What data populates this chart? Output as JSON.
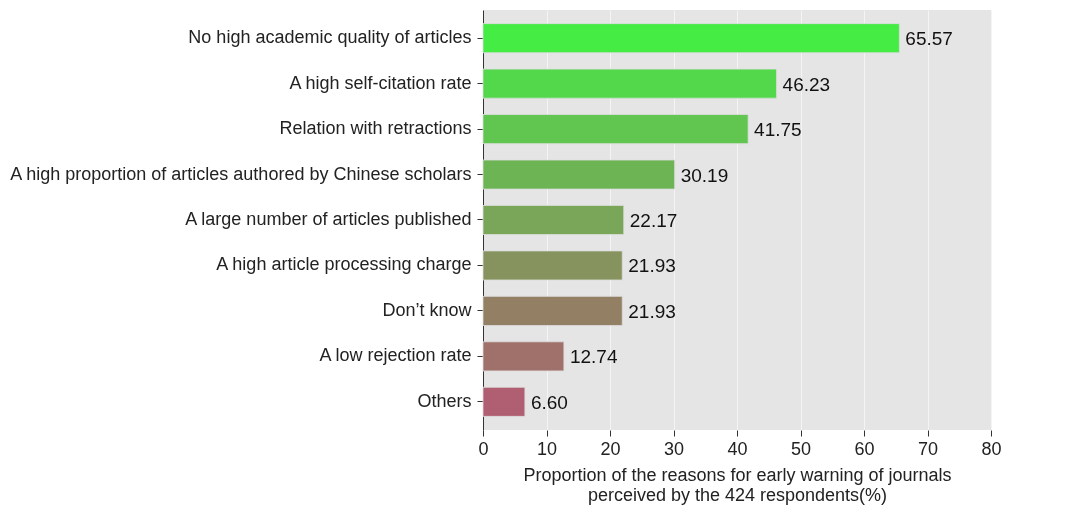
{
  "chart_data": {
    "type": "bar",
    "orientation": "horizontal",
    "categories": [
      "No high academic quality of articles",
      "A high self-citation rate",
      "Relation with retractions",
      "A high proportion of articles authored by Chinese scholars",
      "A large number of articles published",
      "A high article processing charge",
      "Don’t know",
      "A low rejection rate",
      "Others"
    ],
    "values": [
      65.57,
      46.23,
      41.75,
      30.19,
      22.17,
      21.93,
      21.93,
      12.74,
      6.6
    ],
    "colors": [
      "#44ec44",
      "#52d84a",
      "#60c650",
      "#6db454",
      "#7aa65a",
      "#86935e",
      "#927f64",
      "#a0706a",
      "#b05f72"
    ],
    "value_labels": [
      "65.57",
      "46.23",
      "41.75",
      "30.19",
      "22.17",
      "21.93",
      "21.93",
      "12.74",
      "6.60"
    ],
    "xlabel": "Proportion of the reasons for early warning of journals\nperceived by the 424 respondents(%)",
    "xlim": [
      0,
      80
    ],
    "xticks": [
      0,
      10,
      20,
      30,
      40,
      50,
      60,
      70,
      80
    ],
    "grid": true
  }
}
